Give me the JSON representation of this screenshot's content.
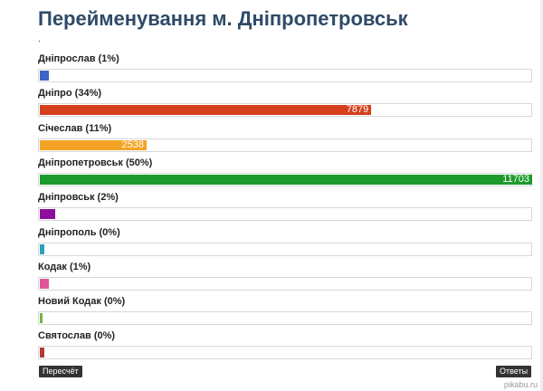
{
  "title": "Перейменування м. Дніпропетровськ",
  "dot": ".",
  "options": [
    {
      "label": "Дніпрослав (1%)",
      "votes": 215,
      "color": "#3f66c6"
    },
    {
      "label": "Дніпро (34%)",
      "votes": 7879,
      "color": "#d63f1b"
    },
    {
      "label": "Січеслав (11%)",
      "votes": 2538,
      "color": "#f4a424"
    },
    {
      "label": "Дніпропетровськ (50%)",
      "votes": 11703,
      "color": "#1d9a2c"
    },
    {
      "label": "Дніпровськ (2%)",
      "votes": 365,
      "color": "#8e0e9c"
    },
    {
      "label": "Дніпрополь (0%)",
      "votes": 100,
      "color": "#2a9fc2"
    },
    {
      "label": "Кодак (1%)",
      "votes": 215,
      "color": "#e0579a"
    },
    {
      "label": "Новий Кодак (0%)",
      "votes": 60,
      "color": "#76b443"
    },
    {
      "label": "Святослав (0%)",
      "votes": 100,
      "color": "#b33838"
    }
  ],
  "buttons": {
    "recount": "Пересчёт",
    "answers": "Ответы"
  },
  "watermark": "pikabu.ru"
}
